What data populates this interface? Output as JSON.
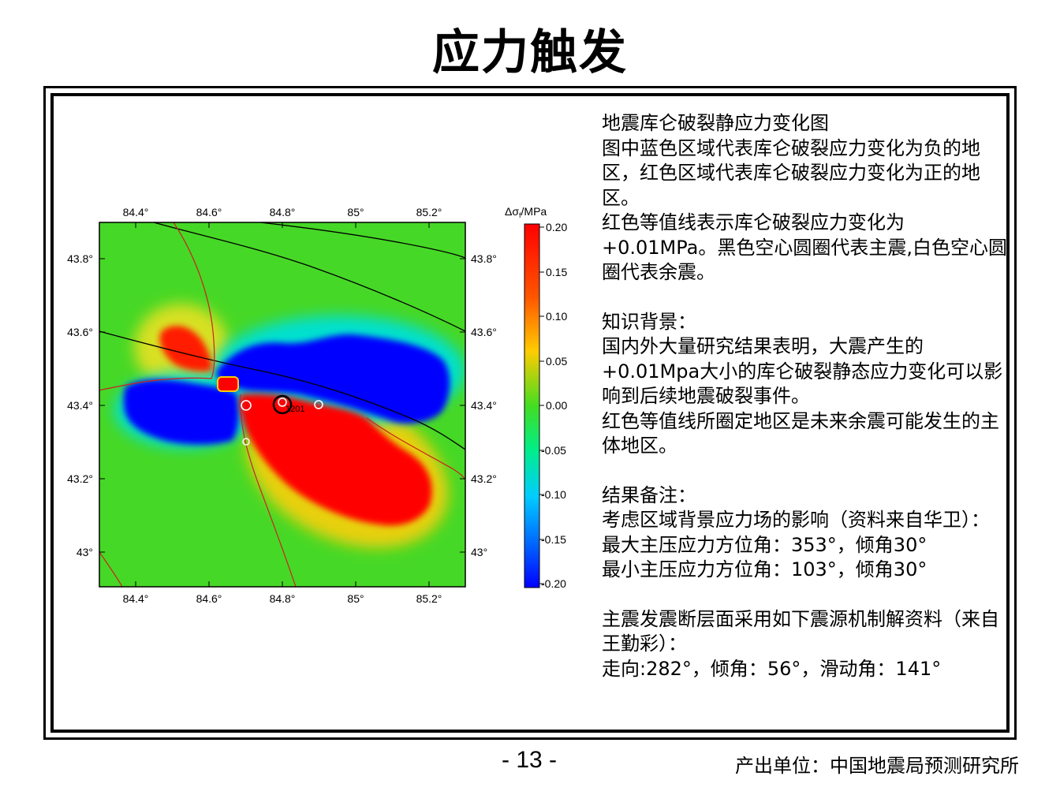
{
  "title": "应力触发",
  "map": {
    "x_ticks": [
      "84.4°",
      "84.6°",
      "84.8°",
      "85°",
      "85.2°"
    ],
    "y_ticks": [
      "43.8°",
      "43.6°",
      "43.4°",
      "43.2°",
      "43°"
    ],
    "event_label": "1201",
    "colors": {
      "negative": "#0000ff",
      "positive": "#ff0000",
      "neutral": "#44dd22",
      "frame": "#000000"
    },
    "colorbar": {
      "label_delta": "Δσ",
      "label_sub": "f",
      "label_unit": "/MPa",
      "ticks": [
        "0.20",
        "0.15",
        "0.10",
        "0.05",
        "0.00",
        "-0.05",
        "-0.10",
        "-0.15",
        "-0.20"
      ],
      "range": [
        -0.2,
        0.2
      ]
    }
  },
  "description": {
    "p1": "地震库仑破裂静应力变化图",
    "p2": "图中蓝色区域代表库仑破裂应力变化为负的地区，红色区域代表库仑破裂应力变化为正的地区。",
    "p3": "红色等值线表示库仑破裂应力变化为+0.01MPa。黑色空心圆圈代表主震,白色空心圆圈代表余震。",
    "p4": "知识背景：",
    "p5": "国内外大量研究结果表明，大震产生的+0.01Mpa大小的库仑破裂静态应力变化可以影响到后续地震破裂事件。",
    "p6": "红色等值线所圈定地区是未来余震可能发生的主体地区。",
    "p7": "结果备注：",
    "p8": "考虑区域背景应力场的影响（资料来自华卫）：",
    "p9": "最大主压应力方位角：353°，倾角30°",
    "p10": "最小主压应力方位角：103°，倾角30°",
    "p11": "主震发震断层面采用如下震源机制解资料（来自王勤彩）：",
    "p12": "走向:282°，倾角：56°，滑动角：141°"
  },
  "footer": {
    "page_number": "- 13 -",
    "source": "产出单位：中国地震局预测研究所"
  }
}
